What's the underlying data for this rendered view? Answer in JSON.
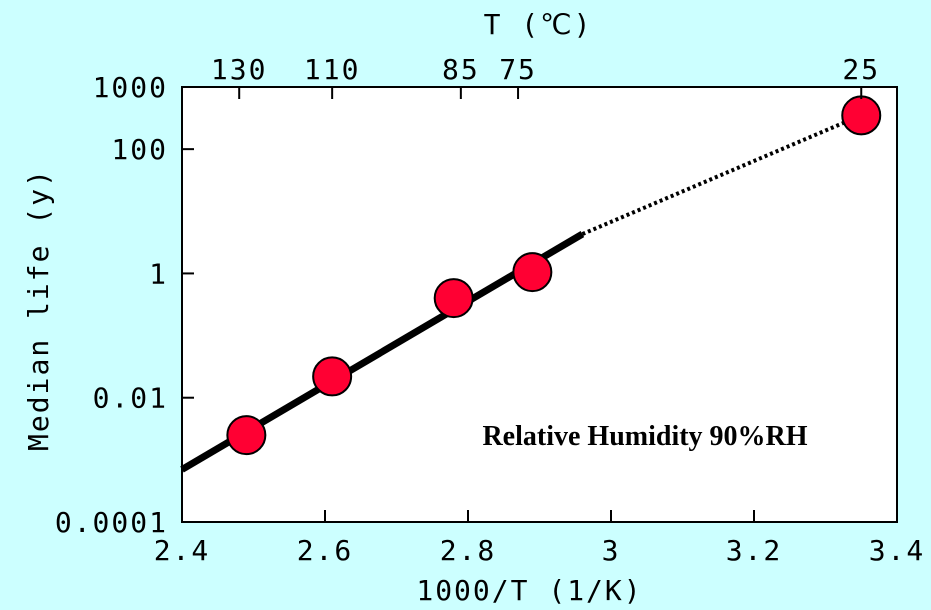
{
  "chart_data": {
    "type": "scatter",
    "xlabel": "1000/T (1/K)",
    "ylabel": "Median life (y)",
    "top_axis_label": "T (℃)",
    "xlim": [
      2.4,
      3.4
    ],
    "ylim": [
      0.0001,
      1000
    ],
    "y_scale": "log",
    "x_ticks": [
      2.4,
      2.6,
      2.8,
      3,
      3.2,
      3.4
    ],
    "x_tick_labels": [
      "2.4",
      "2.6",
      "2.8",
      "3",
      "3.2",
      "3.4"
    ],
    "y_ticks": [
      0.0001,
      0.01,
      1,
      100,
      1000
    ],
    "y_tick_labels": [
      "0.0001",
      "0.01",
      "1",
      "100",
      "1000"
    ],
    "top_ticks": [
      {
        "x": 2.48,
        "label": "130"
      },
      {
        "x": 2.61,
        "label": "110"
      },
      {
        "x": 2.79,
        "label": "85"
      },
      {
        "x": 2.87,
        "label": "75"
      },
      {
        "x": 3.35,
        "label": "25"
      }
    ],
    "points": [
      {
        "x": 2.49,
        "y": 0.0025
      },
      {
        "x": 2.61,
        "y": 0.022
      },
      {
        "x": 2.78,
        "y": 0.4
      },
      {
        "x": 2.89,
        "y": 1.05
      },
      {
        "x": 3.35,
        "y": 350
      }
    ],
    "fit_solid": {
      "x": [
        2.4,
        2.96
      ],
      "y": [
        0.0007,
        4.3
      ]
    },
    "fit_dotted": {
      "x": [
        2.96,
        3.35
      ],
      "y": [
        4.3,
        350
      ]
    },
    "grid": false,
    "annotation": "Relative Humidity 90%RH",
    "colors": {
      "background": "#ccffff",
      "plot_area": "#ffffff",
      "marker": "#ff0033",
      "line": "#000000"
    }
  }
}
